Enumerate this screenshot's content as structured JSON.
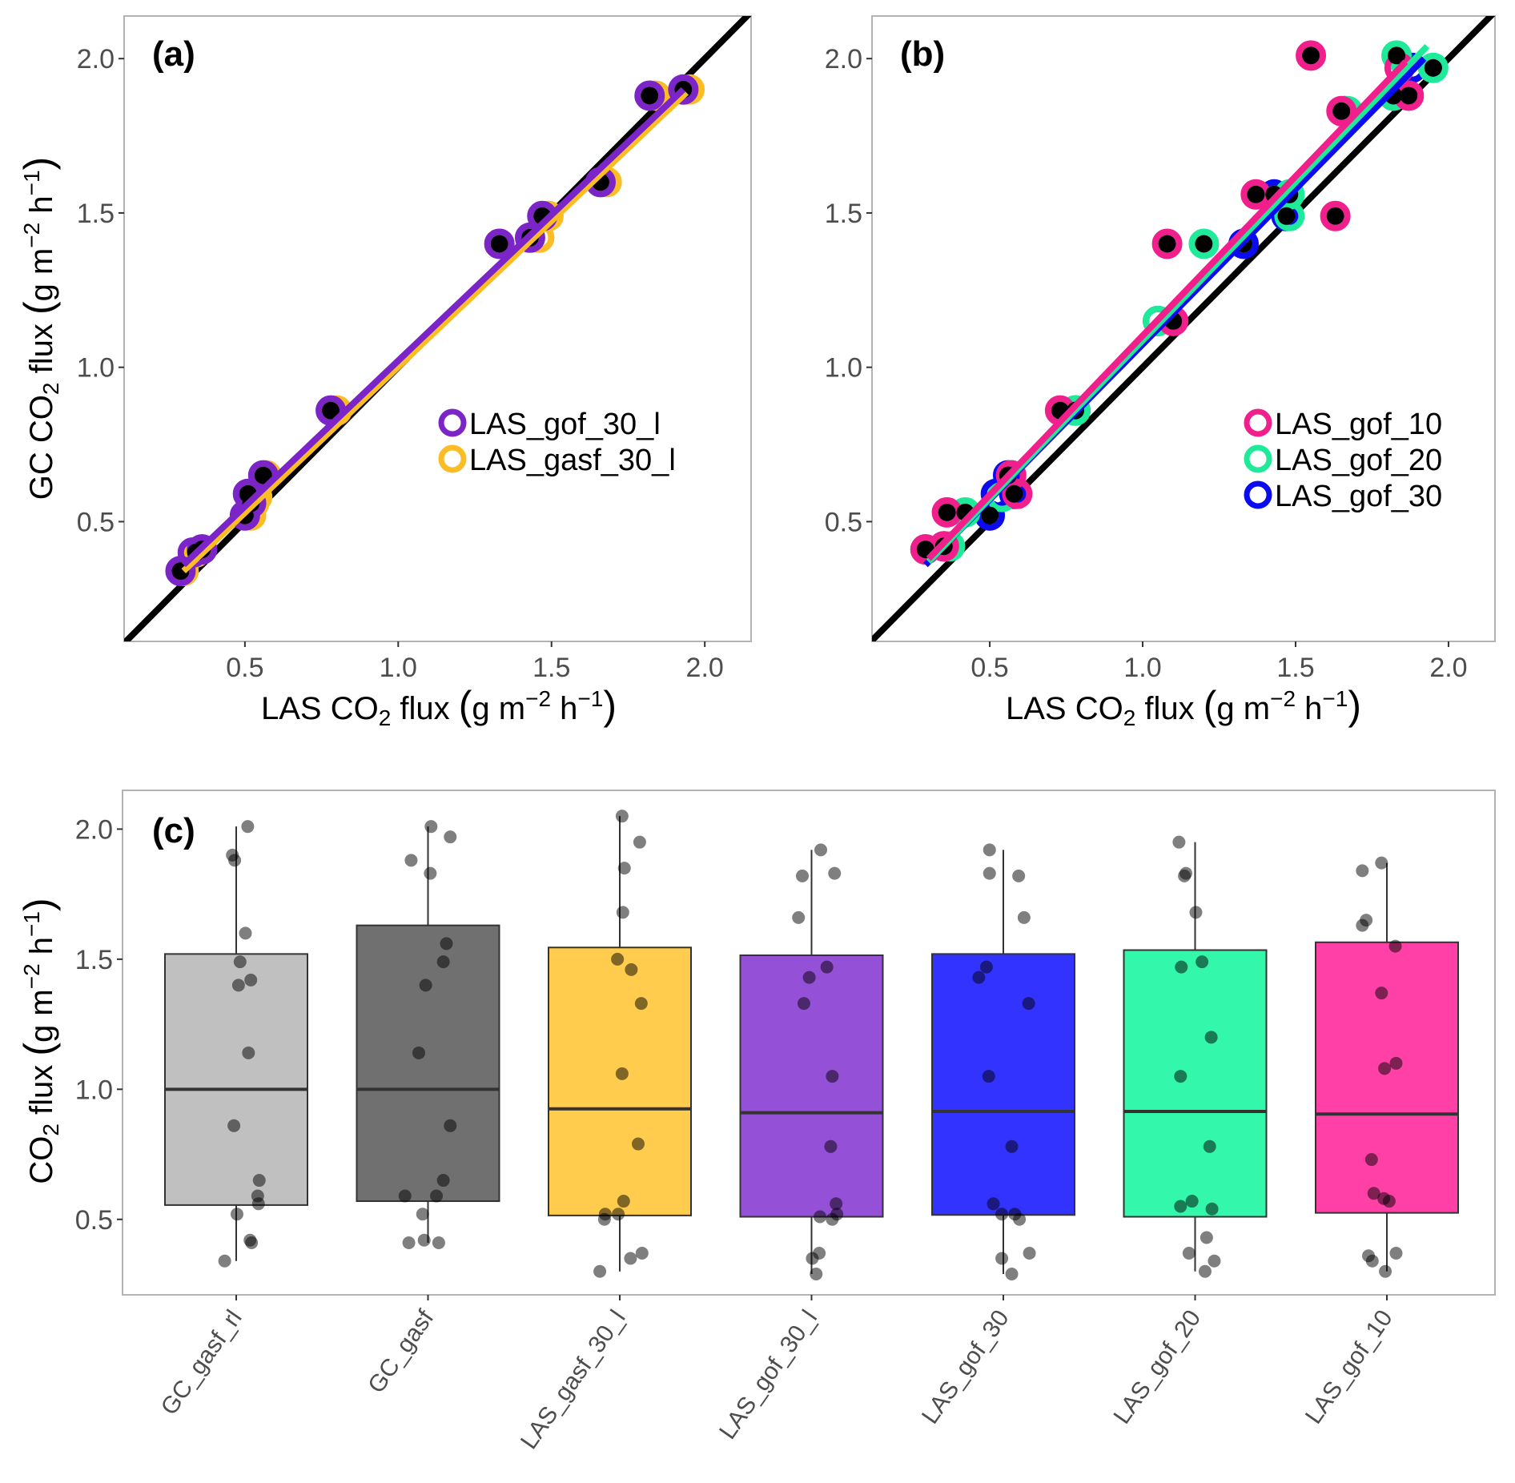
{
  "chart_data": [
    {
      "id": "a",
      "type": "scatter",
      "panel_label": "(a)",
      "xlabel": "LAS CO2 flux (g m-2 h-1)",
      "ylabel": "GC CO2 flux (g m-2 h-1)",
      "xlim": [
        0.106,
        2.151
      ],
      "ylim": [
        0.112,
        2.138
      ],
      "x_ticks": [
        0.5,
        1.0,
        1.5,
        2.0
      ],
      "y_ticks": [
        0.5,
        1.0,
        1.5,
        2.0
      ],
      "x_tick_labels": [
        "0.5",
        "1.0",
        "1.5",
        "2.0"
      ],
      "y_tick_labels": [
        "0.5",
        "1.0",
        "1.5",
        "2.0"
      ],
      "grid": false,
      "one_to_one_line": true,
      "legend_position": "right",
      "series": [
        {
          "name": "LAS_gasf_30_l",
          "color": "#FBBC24",
          "x": [
            0.3,
            0.34,
            0.36,
            0.52,
            0.53,
            0.54,
            0.57,
            0.8,
            1.33,
            1.46,
            1.49,
            1.68,
            1.84,
            1.95
          ],
          "y": [
            0.34,
            0.4,
            0.41,
            0.52,
            0.56,
            0.58,
            0.65,
            0.86,
            1.4,
            1.42,
            1.49,
            1.6,
            1.88,
            1.9
          ],
          "fit": [
            [
              0.3,
              0.34
            ],
            [
              1.94,
              1.89
            ]
          ]
        },
        {
          "name": "LAS_gof_30_l",
          "color": "#7B24C8",
          "x": [
            0.29,
            0.33,
            0.36,
            0.5,
            0.51,
            0.52,
            0.56,
            0.78,
            1.33,
            1.43,
            1.47,
            1.66,
            1.82,
            1.93
          ],
          "y": [
            0.34,
            0.4,
            0.41,
            0.52,
            0.59,
            0.56,
            0.65,
            0.86,
            1.4,
            1.42,
            1.49,
            1.6,
            1.88,
            1.9
          ],
          "fit": [
            [
              0.3,
              0.36
            ],
            [
              1.93,
              1.9
            ]
          ]
        }
      ],
      "gc_reference_points": {
        "color": "#000000",
        "x": [
          0.29,
          0.34,
          0.36,
          0.5,
          0.51,
          0.52,
          0.56,
          0.78,
          1.33,
          1.43,
          1.47,
          1.66,
          1.82,
          1.93
        ],
        "y": [
          0.34,
          0.4,
          0.41,
          0.52,
          0.59,
          0.56,
          0.65,
          0.86,
          1.4,
          1.42,
          1.49,
          1.6,
          1.88,
          1.9
        ]
      }
    },
    {
      "id": "b",
      "type": "scatter",
      "panel_label": "(b)",
      "xlabel": "LAS CO2 flux (g m-2 h-1)",
      "ylabel": "",
      "xlim": [
        0.115,
        2.152
      ],
      "ylim": [
        0.112,
        2.138
      ],
      "x_ticks": [
        0.5,
        1.0,
        1.5,
        2.0
      ],
      "y_ticks": [
        0.5,
        1.0,
        1.5,
        2.0
      ],
      "x_tick_labels": [
        "0.5",
        "1.0",
        "1.5",
        "2.0"
      ],
      "y_tick_labels": [
        "0.5",
        "1.0",
        "1.5",
        "2.0"
      ],
      "grid": false,
      "one_to_one_line": true,
      "legend_position": "right",
      "series": [
        {
          "name": "LAS_gof_30",
          "color": "#0B0BF0",
          "x": [
            0.29,
            0.35,
            0.5,
            0.52,
            0.56,
            0.58,
            0.78,
            1.05,
            1.33,
            1.43,
            1.47,
            1.66,
            1.82,
            1.88
          ],
          "y": [
            0.41,
            0.42,
            0.52,
            0.59,
            0.65,
            0.59,
            0.86,
            1.15,
            1.4,
            1.56,
            1.49,
            1.83,
            1.88,
            1.97
          ],
          "fit": [
            [
              0.29,
              0.36
            ],
            [
              1.92,
              2.0
            ]
          ]
        },
        {
          "name": "LAS_gof_20",
          "color": "#1FEA9A",
          "x": [
            0.29,
            0.37,
            0.42,
            0.54,
            0.57,
            0.78,
            1.05,
            1.2,
            1.48,
            1.48,
            1.67,
            1.82,
            1.83,
            1.95
          ],
          "y": [
            0.41,
            0.42,
            0.53,
            0.58,
            0.65,
            0.86,
            1.15,
            1.4,
            1.56,
            1.49,
            1.83,
            1.88,
            2.01,
            1.97
          ],
          "fit": [
            [
              0.3,
              0.37
            ],
            [
              1.93,
              2.04
            ]
          ]
        },
        {
          "name": "LAS_gof_10",
          "color": "#F01F8C",
          "x": [
            0.29,
            0.35,
            0.36,
            0.57,
            0.59,
            0.73,
            1.08,
            1.1,
            1.37,
            1.55,
            1.63,
            1.65,
            1.84,
            1.87
          ],
          "y": [
            0.41,
            0.42,
            0.53,
            0.65,
            0.59,
            0.86,
            1.4,
            1.15,
            1.56,
            2.01,
            1.49,
            1.83,
            1.97,
            1.88
          ],
          "fit": [
            [
              0.3,
              0.38
            ],
            [
              1.86,
              1.99
            ]
          ]
        }
      ],
      "gc_reference_points": {
        "color": "#000000",
        "x": [
          0.29,
          0.35,
          0.36,
          0.42,
          0.5,
          0.56,
          0.58,
          0.73,
          0.78,
          1.08,
          1.1,
          1.2,
          1.33,
          1.37,
          1.43,
          1.48,
          1.47,
          1.55,
          1.63,
          1.65,
          1.82,
          1.83,
          1.87,
          1.95
        ],
        "y": [
          0.41,
          0.42,
          0.53,
          0.53,
          0.52,
          0.65,
          0.59,
          0.86,
          0.86,
          1.4,
          1.15,
          1.4,
          1.4,
          1.56,
          1.56,
          1.56,
          1.49,
          2.01,
          1.49,
          1.83,
          1.88,
          2.01,
          1.88,
          1.97
        ]
      }
    },
    {
      "id": "c",
      "type": "box",
      "panel_label": "(c)",
      "xlabel": "",
      "ylabel": "CO2 flux (g m-2 h-1)",
      "ylim": [
        0.21,
        2.149
      ],
      "y_ticks": [
        0.5,
        1.0,
        1.5,
        2.0
      ],
      "y_tick_labels": [
        "0.5",
        "1.0",
        "1.5",
        "2.0"
      ],
      "grid": false,
      "categories": [
        "GC_gasf_rl",
        "GC_gasf",
        "LAS_gasf_30_l",
        "LAS_gof_30_l",
        "LAS_gof_30",
        "LAS_gof_20",
        "LAS_gof_10"
      ],
      "boxes": [
        {
          "name": "GC_gasf_rl",
          "color": "#C0C0C0",
          "min": 0.34,
          "q1": 0.555,
          "median": 1.0,
          "q3": 1.52,
          "max": 2.01,
          "points": [
            2.01,
            1.9,
            1.88,
            1.6,
            1.49,
            1.42,
            1.4,
            1.14,
            0.86,
            0.65,
            0.59,
            0.56,
            0.52,
            0.42,
            0.41,
            0.34
          ],
          "jitter": [
            0.15,
            -0.05,
            -0.02,
            0.12,
            0.05,
            0.19,
            0.03,
            0.16,
            -0.03,
            0.3,
            0.28,
            0.29,
            0.01,
            0.18,
            0.2,
            -0.15
          ]
        },
        {
          "name": "GC_gasf",
          "color": "#707070",
          "min": 0.41,
          "q1": 0.57,
          "median": 1.0,
          "q3": 1.63,
          "max": 2.01,
          "points": [
            2.01,
            1.97,
            1.88,
            1.83,
            1.56,
            1.49,
            1.4,
            1.14,
            0.86,
            0.65,
            0.59,
            0.59,
            0.52,
            0.42,
            0.41,
            0.41
          ],
          "jitter": [
            0.04,
            0.29,
            -0.22,
            0.03,
            0.24,
            0.2,
            -0.03,
            -0.12,
            0.29,
            0.2,
            -0.3,
            0.11,
            -0.07,
            -0.05,
            -0.25,
            0.14
          ]
        },
        {
          "name": "LAS_gasf_30_l",
          "color": "#FFCC4D",
          "min": 0.3,
          "q1": 0.515,
          "median": 0.925,
          "q3": 1.545,
          "max": 2.05,
          "points": [
            2.05,
            1.95,
            1.85,
            1.68,
            1.5,
            1.46,
            1.33,
            1.06,
            0.79,
            0.57,
            0.52,
            0.52,
            0.5,
            0.37,
            0.35,
            0.3
          ],
          "jitter": [
            0.03,
            0.26,
            0.06,
            0.04,
            -0.03,
            0.15,
            0.28,
            0.03,
            0.24,
            0.05,
            -0.19,
            -0.02,
            -0.2,
            0.29,
            0.14,
            -0.26
          ]
        },
        {
          "name": "LAS_gof_30_l",
          "color": "#9450D6",
          "min": 0.29,
          "q1": 0.51,
          "median": 0.91,
          "q3": 1.515,
          "max": 1.92,
          "points": [
            1.92,
            1.83,
            1.82,
            1.66,
            1.47,
            1.43,
            1.33,
            1.05,
            0.78,
            0.56,
            0.52,
            0.51,
            0.5,
            0.37,
            0.35,
            0.29
          ],
          "jitter": [
            0.12,
            0.3,
            -0.12,
            -0.17,
            0.2,
            -0.03,
            -0.1,
            0.27,
            0.25,
            0.32,
            0.33,
            0.11,
            0.27,
            0.1,
            0.01,
            0.06
          ]
        },
        {
          "name": "LAS_gof_30",
          "color": "#3333FF",
          "min": 0.29,
          "q1": 0.517,
          "median": 0.915,
          "q3": 1.52,
          "max": 1.92,
          "points": [
            1.92,
            1.83,
            1.82,
            1.66,
            1.47,
            1.43,
            1.33,
            1.05,
            0.78,
            0.56,
            0.52,
            0.52,
            0.5,
            0.37,
            0.35,
            0.29
          ],
          "jitter": [
            -0.18,
            -0.18,
            0.2,
            0.27,
            -0.22,
            -0.32,
            0.33,
            -0.19,
            0.11,
            -0.13,
            -0.02,
            0.15,
            0.21,
            0.34,
            -0.02,
            0.11
          ]
        },
        {
          "name": "LAS_gof_20",
          "color": "#33F7AA",
          "min": 0.3,
          "q1": 0.51,
          "median": 0.915,
          "q3": 1.535,
          "max": 1.95,
          "points": [
            1.95,
            1.83,
            1.82,
            1.68,
            1.49,
            1.47,
            1.2,
            1.05,
            0.78,
            0.57,
            0.55,
            0.54,
            0.43,
            0.37,
            0.34,
            0.3
          ],
          "jitter": [
            -0.21,
            -0.12,
            -0.14,
            0.01,
            0.09,
            -0.18,
            0.21,
            -0.19,
            0.19,
            -0.04,
            -0.19,
            0.22,
            0.15,
            -0.08,
            0.25,
            0.13
          ]
        },
        {
          "name": "LAS_gof_10",
          "color": "#FF40A6",
          "min": 0.3,
          "q1": 0.525,
          "median": 0.905,
          "q3": 1.565,
          "max": 1.87,
          "points": [
            1.87,
            1.84,
            1.65,
            1.63,
            1.55,
            1.37,
            1.1,
            1.08,
            0.73,
            0.6,
            0.58,
            0.57,
            0.37,
            0.36,
            0.34,
            0.3
          ],
          "jitter": [
            -0.07,
            -0.32,
            -0.27,
            -0.32,
            0.11,
            -0.07,
            0.12,
            -0.03,
            -0.2,
            -0.17,
            -0.04,
            0.03,
            0.12,
            -0.24,
            -0.19,
            -0.02
          ]
        }
      ]
    }
  ],
  "labels": {
    "panel_a": "(a)",
    "panel_b": "(b)",
    "panel_c": "(c)",
    "xlabel_prefix": "LAS CO",
    "xlabel_sub": "2",
    "xlabel_mid": " flux ",
    "gc_prefix": "GC CO",
    "flux_prefix": "CO",
    "unit_g_m": "g m",
    "exp_m": "−2",
    "unit_h": " h",
    "exp_h": "−1"
  }
}
